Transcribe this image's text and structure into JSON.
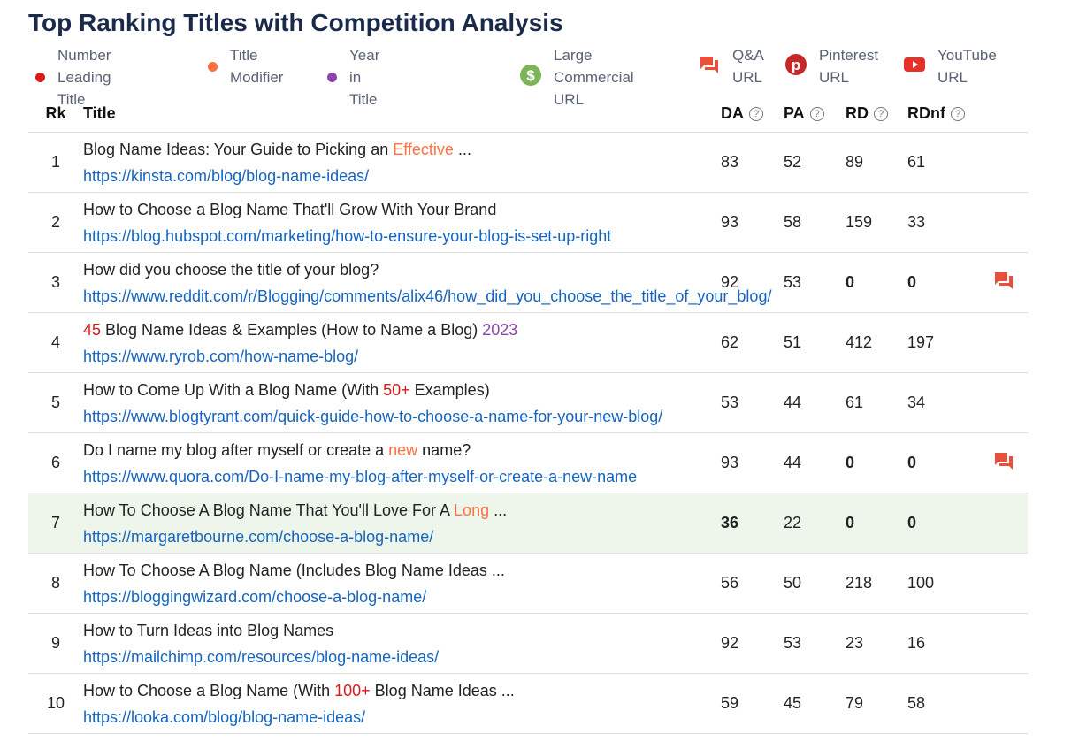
{
  "title": "Top Ranking Titles with Competition Analysis",
  "legend": [
    {
      "label": "Number Leading Title",
      "icon": "red-dot",
      "color": "#d81b1b"
    },
    {
      "label": "Title Modifier",
      "icon": "orange-dot",
      "color": "#ff7043"
    },
    {
      "label": "Year in Title",
      "icon": "purple-dot",
      "color": "#8e44ad"
    },
    {
      "label": "Large Commercial URL",
      "icon": "dollar-icon",
      "color": "#7cb45a"
    },
    {
      "label": "Q&A URL",
      "icon": "chat-icon",
      "color": "#e9503a"
    },
    {
      "label": "Pinterest URL",
      "icon": "pinterest-icon",
      "color": "#c62828"
    },
    {
      "label": "YouTube URL",
      "icon": "youtube-icon",
      "color": "#e53127"
    }
  ],
  "columns": {
    "rk": "Rk",
    "title": "Title",
    "da": "DA",
    "pa": "PA",
    "rd": "RD",
    "rdnf": "RDnf",
    "help": "?"
  },
  "rows": [
    {
      "rk": "1",
      "segments": [
        [
          "Blog Name Ideas: Your Guide to Picking an ",
          ""
        ],
        [
          "Effective",
          "modifier"
        ],
        [
          " ...",
          ""
        ]
      ],
      "url": "https://kinsta.com/blog/blog-name-ideas/",
      "da": "83",
      "pa": "52",
      "rd": "89",
      "rdnf": "61"
    },
    {
      "rk": "2",
      "segments": [
        [
          "How to Choose a Blog Name That'll Grow With Your Brand",
          ""
        ]
      ],
      "url": "https://blog.hubspot.com/marketing/how-to-ensure-your-blog-is-set-up-right",
      "da": "93",
      "pa": "58",
      "rd": "159",
      "rdnf": "33"
    },
    {
      "rk": "3",
      "segments": [
        [
          "How did you choose the title of your blog?",
          ""
        ]
      ],
      "url": "https://www.reddit.com/r/Blogging/comments/alix46/how_did_you_choose_the_title_of_your_blog/",
      "da": "92",
      "pa": "53",
      "rd": "0",
      "rdnf": "0",
      "bold_rd": true,
      "icon": "qa"
    },
    {
      "rk": "4",
      "segments": [
        [
          "45",
          "number"
        ],
        [
          " Blog Name Ideas & Examples (How to Name a Blog) ",
          ""
        ],
        [
          "2023",
          "year"
        ]
      ],
      "url": "https://www.ryrob.com/how-name-blog/",
      "da": "62",
      "pa": "51",
      "rd": "412",
      "rdnf": "197"
    },
    {
      "rk": "5",
      "segments": [
        [
          "How to Come Up With a Blog Name (With ",
          ""
        ],
        [
          "50+",
          "number"
        ],
        [
          " Examples)",
          ""
        ]
      ],
      "url": "https://www.blogtyrant.com/quick-guide-how-to-choose-a-name-for-your-new-blog/",
      "da": "53",
      "pa": "44",
      "rd": "61",
      "rdnf": "34"
    },
    {
      "rk": "6",
      "segments": [
        [
          "Do I name my blog after myself or create a ",
          ""
        ],
        [
          "new",
          "modifier"
        ],
        [
          " name?",
          ""
        ]
      ],
      "url": "https://www.quora.com/Do-I-name-my-blog-after-myself-or-create-a-new-name",
      "da": "93",
      "pa": "44",
      "rd": "0",
      "rdnf": "0",
      "bold_rd": true,
      "icon": "qa"
    },
    {
      "rk": "7",
      "segments": [
        [
          "How To Choose A Blog Name That You'll Love For A ",
          ""
        ],
        [
          "Long",
          "modifier"
        ],
        [
          " ...",
          ""
        ]
      ],
      "url": "https://margaretbourne.com/choose-a-blog-name/",
      "da": "36",
      "pa": "22",
      "rd": "0",
      "rdnf": "0",
      "bold_rd": true,
      "bold_da": true,
      "highlight": true
    },
    {
      "rk": "8",
      "segments": [
        [
          "How To Choose A Blog Name (Includes Blog Name Ideas ...",
          ""
        ]
      ],
      "url": "https://bloggingwizard.com/choose-a-blog-name/",
      "da": "56",
      "pa": "50",
      "rd": "218",
      "rdnf": "100"
    },
    {
      "rk": "9",
      "segments": [
        [
          "How to Turn Ideas into Blog Names",
          ""
        ]
      ],
      "url": "https://mailchimp.com/resources/blog-name-ideas/",
      "da": "92",
      "pa": "53",
      "rd": "23",
      "rdnf": "16"
    },
    {
      "rk": "10",
      "segments": [
        [
          "How to Choose a Blog Name (With ",
          ""
        ],
        [
          "100+",
          "number"
        ],
        [
          " Blog Name Ideas ...",
          ""
        ]
      ],
      "url": "https://looka.com/blog/blog-name-ideas/",
      "da": "59",
      "pa": "45",
      "rd": "79",
      "rdnf": "58"
    }
  ]
}
